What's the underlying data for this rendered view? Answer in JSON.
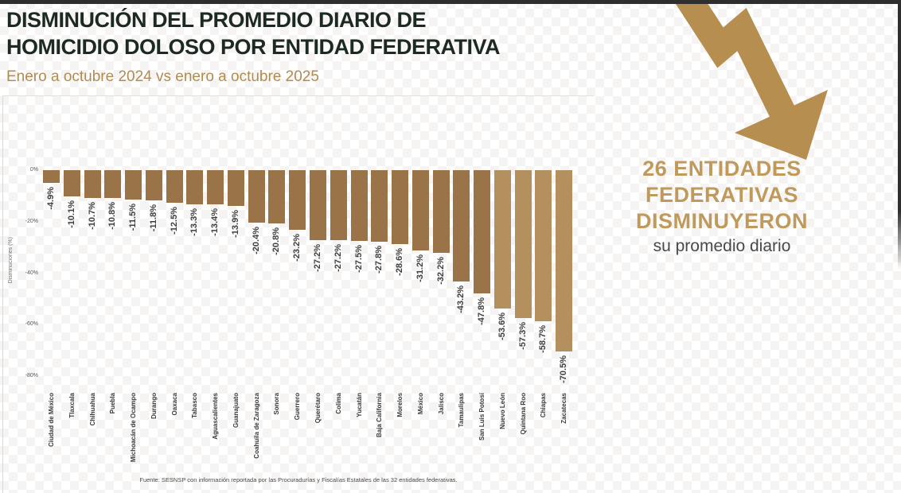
{
  "header": {
    "title_line1": "DISMINUCIÓN DEL PROMEDIO DIARIO DE",
    "title_line2": "HOMICIDIO DOLOSO POR ENTIDAD FEDERATIVA",
    "subtitle": "Enero a octubre 2024 vs enero a octubre 2025"
  },
  "callout": {
    "line1": "26 ENTIDADES",
    "line2": "FEDERATIVAS",
    "line3": "DISMINUYERON",
    "subline": "su promedio diario"
  },
  "footer": {
    "source": "Fuente: SESNSP con información reportada por las Procuradurías y Fiscalías Estatales de las 32 entidades federativas."
  },
  "colors": {
    "bar_default": "#9a7448",
    "bar_light": "#b3905e",
    "accent_tan": "#b68e50",
    "title_dark": "#1c2a23",
    "subtitle_tan": "#b18c52"
  },
  "chart_data": {
    "type": "bar",
    "title": "",
    "xlabel": "",
    "ylabel": "Disminuciones (%)",
    "ylim": [
      -80,
      0
    ],
    "grid": false,
    "legend": false,
    "yticks": [
      "0%",
      "-20%",
      "-40%",
      "-60%",
      "-80%"
    ],
    "categories": [
      "Ciudad de México",
      "Tlaxcala",
      "Chihuahua",
      "Puebla",
      "Michoacán de Ocampo",
      "Durango",
      "Oaxaca",
      "Tabasco",
      "Aguascalientes",
      "Guanajuato",
      "Coahuila de Zaragoza",
      "Sonora",
      "Guerrero",
      "Querétaro",
      "Colima",
      "Yucatán",
      "Baja California",
      "Morelos",
      "México",
      "Jalisco",
      "Tamaulipas",
      "San Luis Potosí",
      "Nuevo León",
      "Quintana Roo",
      "Chiapas",
      "Zacatecas"
    ],
    "values": [
      -4.9,
      -10.1,
      -10.7,
      -10.8,
      -11.5,
      -11.8,
      -12.5,
      -13.3,
      -13.4,
      -13.9,
      -20.4,
      -20.8,
      -23.2,
      -27.2,
      -27.2,
      -27.5,
      -27.8,
      -28.6,
      -31.2,
      -32.2,
      -43.2,
      -47.8,
      -53.6,
      -57.3,
      -58.7,
      -70.5
    ],
    "light_from_index": 22
  }
}
